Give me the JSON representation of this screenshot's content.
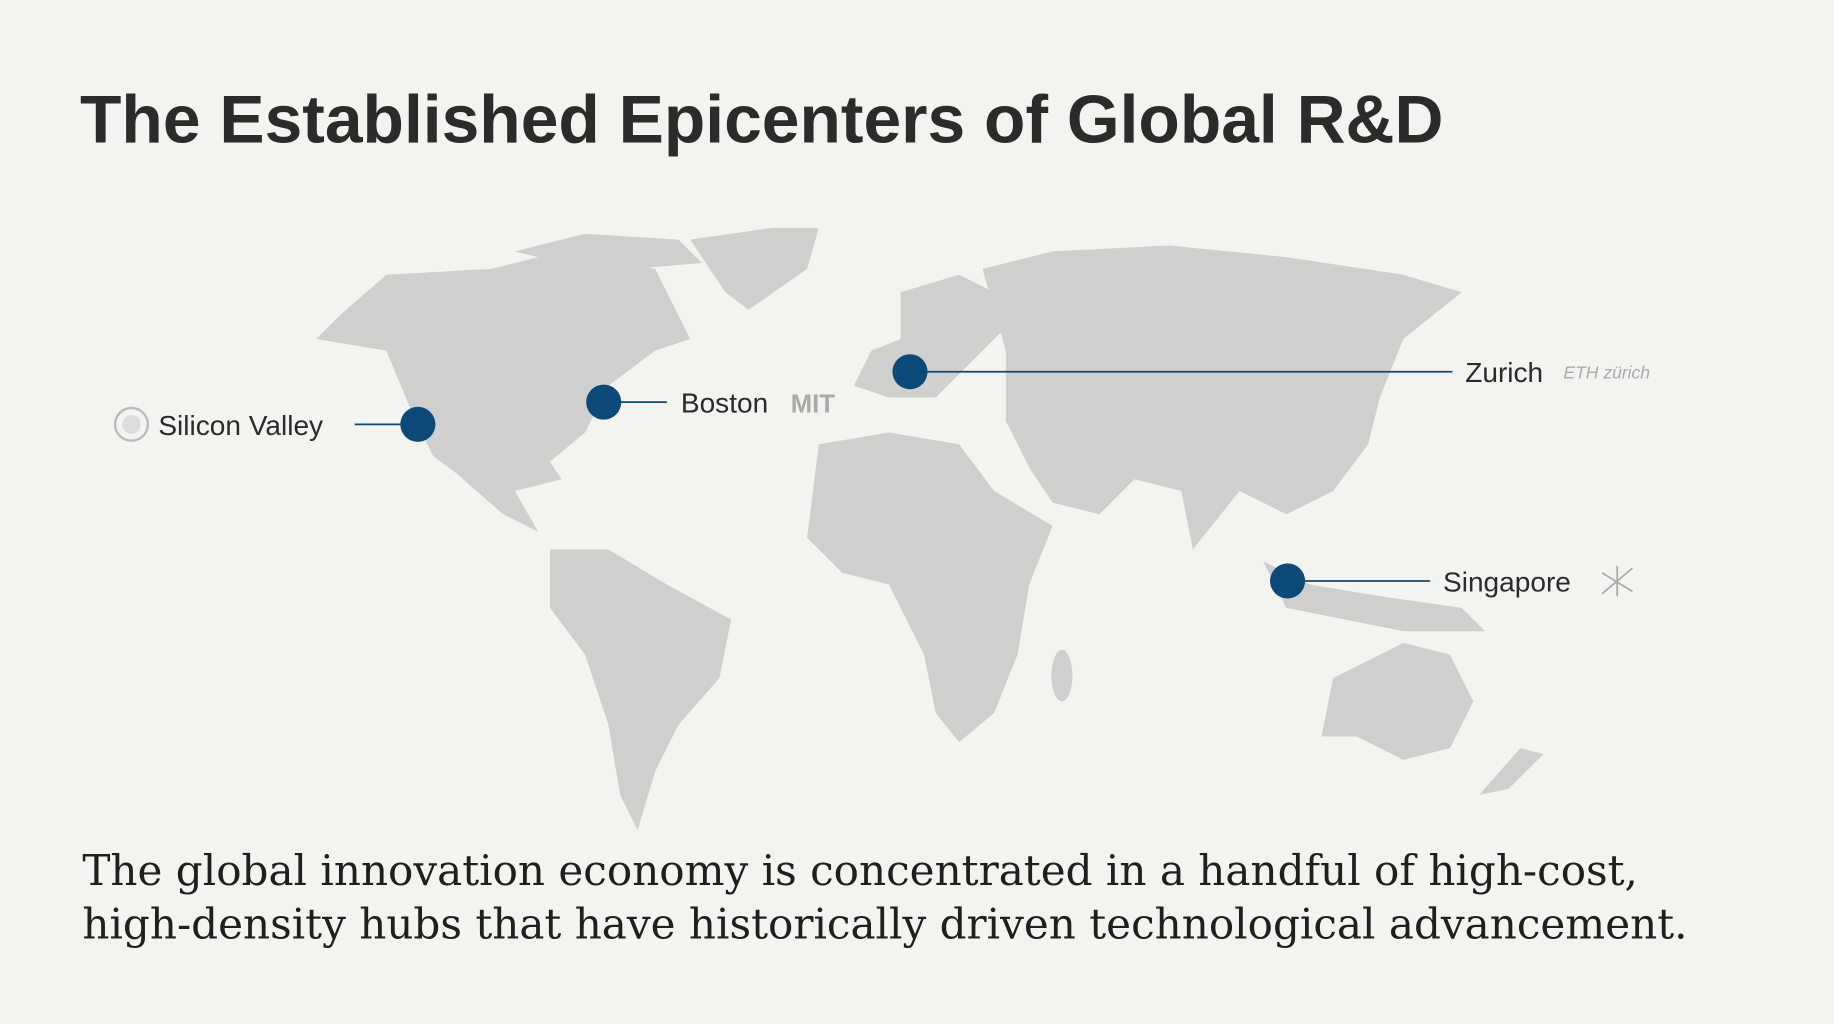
{
  "header": {
    "title": "The Established Epicenters of Global R&D"
  },
  "hubs": [
    {
      "label": "Silicon Valley"
    },
    {
      "label": "Boston",
      "logo": "MIT"
    },
    {
      "label": "Zurich",
      "logo": "ETH zürich"
    },
    {
      "label": "Singapore"
    }
  ],
  "body": [
    "The global innovation economy is concentrated in a handful of high-cost,",
    "high-density hubs that have historically driven technological advancement."
  ]
}
